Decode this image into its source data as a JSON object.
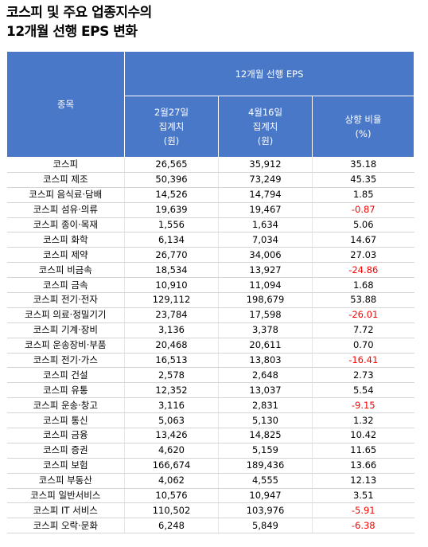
{
  "title_line1": "코스피 및 주요 업종지수의",
  "title_line2": "12개월 선행 EPS 변화",
  "header": {
    "group": "12개월 선행 EPS",
    "sector": "종목",
    "col1": [
      "2월27일",
      "집계치",
      "(원)"
    ],
    "col2": [
      "4월16일",
      "집계치",
      "(원)"
    ],
    "col3": [
      "상향 비율",
      "(%)"
    ]
  },
  "colors": {
    "header_bg": "#4a78c9",
    "negative": "#ff0000"
  },
  "chart_data": {
    "type": "table",
    "columns": [
      "종목",
      "2월27일 집계치 (원)",
      "4월16일 집계치 (원)",
      "상향 비율 (%)"
    ],
    "rows": [
      [
        "코스피",
        "26,565",
        "35,912",
        "35.18"
      ],
      [
        "코스피 제조",
        "50,396",
        "73,249",
        "45.35"
      ],
      [
        "코스피 음식료·담배",
        "14,526",
        "14,794",
        "1.85"
      ],
      [
        "코스피 섬유·의류",
        "19,639",
        "19,467",
        "-0.87"
      ],
      [
        "코스피 종이·목재",
        "1,556",
        "1,634",
        "5.06"
      ],
      [
        "코스피 화학",
        "6,134",
        "7,034",
        "14.67"
      ],
      [
        "코스피 제약",
        "26,770",
        "34,006",
        "27.03"
      ],
      [
        "코스피 비금속",
        "18,534",
        "13,927",
        "-24.86"
      ],
      [
        "코스피 금속",
        "10,910",
        "11,094",
        "1.68"
      ],
      [
        "코스피 전기·전자",
        "129,112",
        "198,679",
        "53.88"
      ],
      [
        "코스피 의료·정밀기기",
        "23,784",
        "17,598",
        "-26.01"
      ],
      [
        "코스피 기계·장비",
        "3,136",
        "3,378",
        "7.72"
      ],
      [
        "코스피 운송장비·부품",
        "20,468",
        "20,611",
        "0.70"
      ],
      [
        "코스피 전기·가스",
        "16,513",
        "13,803",
        "-16.41"
      ],
      [
        "코스피 건설",
        "2,578",
        "2,648",
        "2.73"
      ],
      [
        "코스피 유통",
        "12,352",
        "13,037",
        "5.54"
      ],
      [
        "코스피 운송·창고",
        "3,116",
        "2,831",
        "-9.15"
      ],
      [
        "코스피 통신",
        "5,063",
        "5,130",
        "1.32"
      ],
      [
        "코스피 금융",
        "13,426",
        "14,825",
        "10.42"
      ],
      [
        "코스피 증권",
        "4,620",
        "5,159",
        "11.65"
      ],
      [
        "코스피 보험",
        "166,674",
        "189,436",
        "13.66"
      ],
      [
        "코스피 부동산",
        "4,062",
        "4,555",
        "12.13"
      ],
      [
        "코스피 일반서비스",
        "10,576",
        "10,947",
        "3.51"
      ],
      [
        "코스피 IT 서비스",
        "110,502",
        "103,976",
        "-5.91"
      ],
      [
        "코스피 오락·문화",
        "6,248",
        "5,849",
        "-6.38"
      ]
    ]
  }
}
